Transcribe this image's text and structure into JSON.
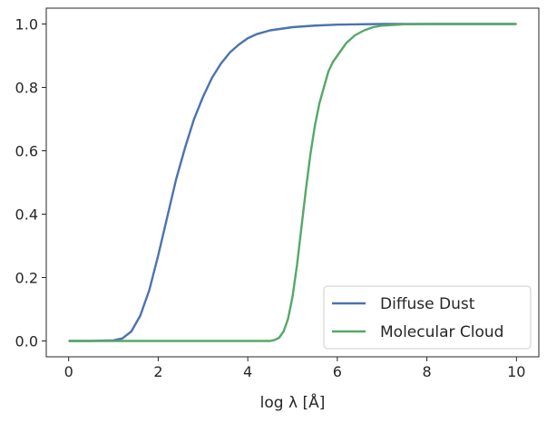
{
  "chart_data": {
    "type": "line",
    "title": "",
    "xlabel": "log  λ [Å]",
    "ylabel": "",
    "xlim": [
      -0.5,
      10.5
    ],
    "ylim": [
      -0.05,
      1.05
    ],
    "xticks": [
      0,
      2,
      4,
      6,
      8,
      10
    ],
    "xtick_labels": [
      "0",
      "2",
      "4",
      "6",
      "8",
      "10"
    ],
    "yticks": [
      0.0,
      0.2,
      0.4,
      0.6,
      0.8,
      1.0
    ],
    "ytick_labels": [
      "0.0",
      "0.2",
      "0.4",
      "0.6",
      "0.8",
      "1.0"
    ],
    "grid": false,
    "legend_position": "lower-right",
    "series": [
      {
        "name": "Diffuse Dust",
        "color": "#4c72b0",
        "x": [
          0,
          0.5,
          1.0,
          1.2,
          1.4,
          1.6,
          1.8,
          2.0,
          2.2,
          2.4,
          2.6,
          2.8,
          3.0,
          3.2,
          3.4,
          3.6,
          3.8,
          4.0,
          4.2,
          4.5,
          5.0,
          5.5,
          6.0,
          6.5,
          7.0,
          8.0,
          9.0,
          10.0
        ],
        "y": [
          0.0,
          0.0,
          0.002,
          0.008,
          0.03,
          0.08,
          0.16,
          0.27,
          0.39,
          0.51,
          0.61,
          0.7,
          0.77,
          0.83,
          0.875,
          0.91,
          0.935,
          0.955,
          0.968,
          0.98,
          0.99,
          0.995,
          0.998,
          0.999,
          1.0,
          1.0,
          1.0,
          1.0
        ]
      },
      {
        "name": "Molecular Cloud",
        "color": "#55a868",
        "x": [
          0,
          1,
          2,
          3,
          4,
          4.5,
          4.6,
          4.7,
          4.8,
          4.9,
          5.0,
          5.1,
          5.2,
          5.3,
          5.4,
          5.5,
          5.6,
          5.7,
          5.8,
          5.9,
          6.0,
          6.2,
          6.4,
          6.6,
          6.8,
          7.0,
          7.5,
          8.0,
          9.0,
          10.0
        ],
        "y": [
          0.0,
          0.0,
          0.0,
          0.0,
          0.0,
          0.0,
          0.003,
          0.01,
          0.03,
          0.07,
          0.14,
          0.24,
          0.36,
          0.48,
          0.59,
          0.68,
          0.75,
          0.8,
          0.85,
          0.88,
          0.9,
          0.94,
          0.965,
          0.98,
          0.99,
          0.995,
          0.999,
          1.0,
          1.0,
          1.0
        ]
      }
    ]
  }
}
